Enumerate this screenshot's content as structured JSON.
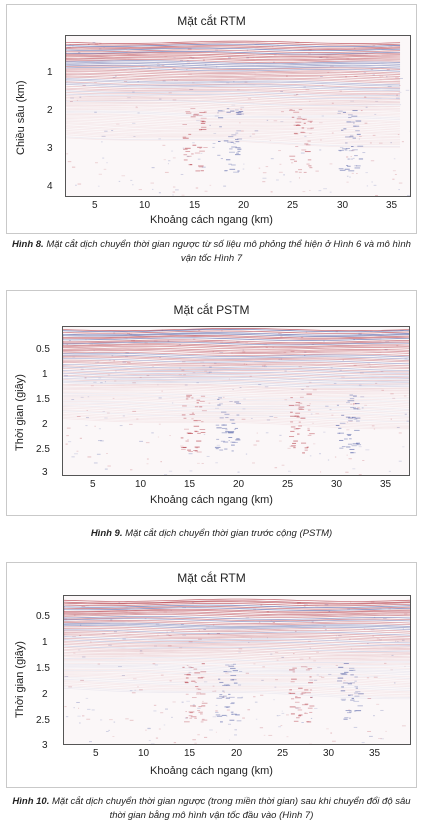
{
  "figures": [
    {
      "title": "Mặt cắt RTM",
      "ylabel": "Chiều sâu (km)",
      "xlabel": "Khoảng cách ngang (km)",
      "yticks": [
        "1",
        "2",
        "3",
        "4"
      ],
      "xticks": [
        "5",
        "10",
        "15",
        "20",
        "25",
        "30",
        "35"
      ],
      "caption_label": "Hình 8.",
      "caption_text": "Mặt cắt dịch chuyển thời gian ngược từ số liệu mô phỏng thể hiện ở Hình 6 và mô hình vận tốc Hình 7"
    },
    {
      "title": "Mặt cắt PSTM",
      "ylabel": "Thời gian (giây)",
      "xlabel": "Khoảng cách ngang (km)",
      "yticks": [
        "0.5",
        "1",
        "1.5",
        "2",
        "2.5",
        "3"
      ],
      "xticks": [
        "5",
        "10",
        "15",
        "20",
        "25",
        "30",
        "35"
      ],
      "caption_label": "Hình 9.",
      "caption_text": "Mặt cắt dịch chuyển thời gian trước cộng (PSTM)"
    },
    {
      "title": "Mặt cắt RTM",
      "ylabel": "Thời gian (giây)",
      "xlabel": "Khoảng cách ngang (km)",
      "yticks": [
        "0.5",
        "1",
        "1.5",
        "2",
        "2.5",
        "3"
      ],
      "xticks": [
        "5",
        "10",
        "15",
        "20",
        "25",
        "30",
        "35"
      ],
      "caption_label": "Hình 10.",
      "caption_text": "Mặt cắt dịch chuyển thời gian ngược (trong miền thời gian) sau khi chuyển đổi độ sâu thời gian bằng mô hình vận tốc đầu vào (Hình 7)"
    }
  ],
  "colors": {
    "red": "#b0303c",
    "blue": "#3a4a9a",
    "paper": "#fbf7f8"
  }
}
